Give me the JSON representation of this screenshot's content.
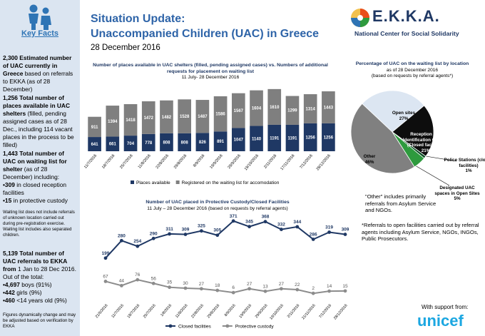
{
  "sidebar": {
    "heading": "Key Facts",
    "facts": [
      {
        "bold": "2,300 Estimated number of UAC currently in Greece",
        "text": "based on referrals to EKKA (as of 28 December)"
      },
      {
        "bold": "1,256 Total number of places  available in UAC shelters",
        "text": "(filled, pending assigned cases as of 28 Dec., including 114 vacant places in the process to be filled)"
      },
      {
        "bold": "1,443 Total number of UAC on waiting list for shelter",
        "text": "(as of 28 December) including:",
        "bullets": [
          {
            "bold": "•309",
            "text": "in closed reception facilities"
          },
          {
            "bold": "•15",
            "text": "in protective custody"
          }
        ]
      },
      {
        "note": "Waiting list does not include referrals of unknown location carried out during pre-registration exercise. Waiting list includes also separated children."
      },
      {
        "bold": "5,139 Total number of UAC referrals to EKKA from",
        "text": "1 Jan to 28 Dec 2016.",
        "sub": "Out of the total:",
        "bullets": [
          {
            "bold": "•4,697",
            "text": "boys (91%)"
          },
          {
            "bold": "•442",
            "text": "girls (9%)"
          },
          {
            "bold": "•460",
            "text": "<14 years old (9%)"
          }
        ]
      },
      {
        "note": "Figures dynamically change and may be adjusted based on verification by EKKA"
      }
    ]
  },
  "header": {
    "title_line1": "Situation Update:",
    "title_line2": "Unaccompanied Children (UAC) in Greece",
    "date": "28 December 2016",
    "logo": "E.K.K.A.",
    "logo_subtitle": "National Center for Social Solidarity"
  },
  "chart_data": [
    {
      "type": "bar",
      "stacked": true,
      "title": "Number of places available in UAC shelters (filled, pending assigned cases)  vs. Numbers of additional requests for placement on waiting list",
      "subtitle": "11 July- 28 December 2016",
      "categories": [
        "11/7/2016",
        "18/7/2016",
        "25/7/2016",
        "11/8/2016",
        "22/8/2016",
        "29/8/2016",
        "8/9/2016",
        "19/9/2016",
        "29/9/2016",
        "19/10/2016",
        "2/11/2016",
        "17/11/2016",
        "7/12/2016",
        "28/12/2016"
      ],
      "series": [
        {
          "name": "Places available",
          "color": "#1f3864",
          "values": [
            641,
            661,
            704,
            778,
            808,
            808,
            826,
            891,
            1047,
            1140,
            1191,
            1191,
            1256,
            1256
          ]
        },
        {
          "name": "Registered on the waiting list for accomodation",
          "color": "#7f7f7f",
          "values": [
            911,
            1394,
            1418,
            1472,
            1482,
            1528,
            1487,
            1586,
            1567,
            1604,
            1610,
            1299,
            1314,
            1443
          ]
        }
      ],
      "ylim": [
        0,
        2700
      ]
    },
    {
      "type": "line",
      "title": "Number of UAC placed in  Protective Custody/Closed Facilities",
      "subtitle": "11 July – 28 December 2016 (based on requests by referral agents)",
      "categories": [
        "21/6/2016",
        "11/7/2016",
        "18/7/2016",
        "25/7/2016",
        "1/8/2016",
        "11/8/2016",
        "22/8/2016",
        "29/8/2016",
        "8/9/2016",
        "19/9/2016",
        "29/9/2016",
        "19/10/2016",
        "2/11/2016",
        "21/11/2016",
        "7/12/2016",
        "28/12/2016"
      ],
      "series": [
        {
          "name": "Closed facilities",
          "color": "#1f3864",
          "values": [
            199,
            280,
            254,
            290,
            311,
            309,
            325,
            305,
            371,
            345,
            368,
            332,
            344,
            286,
            319,
            309
          ]
        },
        {
          "name": "Protective custody",
          "color": "#8c8c8c",
          "axis": "y2",
          "values": [
            67,
            44,
            76,
            56,
            35,
            30,
            27,
            18,
            6,
            27,
            13,
            27,
            22,
            2,
            14,
            15
          ]
        }
      ],
      "ylim": [
        0,
        400
      ],
      "y2lim": [
        -40,
        430
      ]
    },
    {
      "type": "pie",
      "title": "Percentage of UAC on the waiting list by location",
      "subtitle": "as of 28 December 2016",
      "subtitle2": "(based on requests by referral agents*)",
      "categories": [
        "Open sites",
        "Reception and Identification Centers (Closed facilities)",
        "Police Stations (closed facilities)",
        "Designated UAC spaces in Open Sites",
        "Other"
      ],
      "values": [
        27,
        21,
        1,
        5,
        46
      ],
      "value_labels": [
        "27%",
        "21%",
        "1%",
        "5%",
        "46%"
      ],
      "colors": [
        "#dce6f2",
        "#0d0d0d",
        "#0b4d24",
        "#2e9a3e",
        "#808080"
      ],
      "notes": [
        "\"Other\" includes primarily referrals from Asylum Service and NGOs.",
        "*Referrals to open facilities carried out by referral agents including Asylum Service, NGOs, INGOs, Public Prosecutors."
      ]
    }
  ],
  "footer": {
    "support": "With support from:",
    "brand": "unicef"
  }
}
